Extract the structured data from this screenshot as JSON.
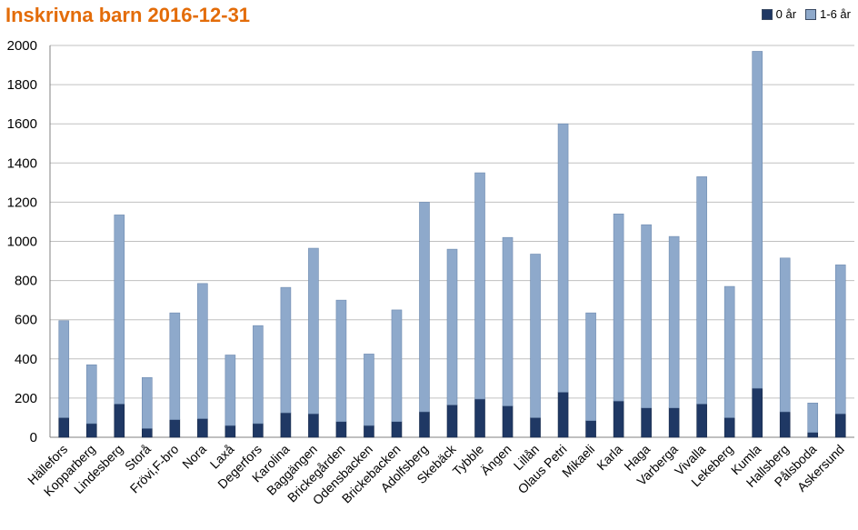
{
  "chart_data": {
    "type": "bar",
    "stacked": true,
    "title": "Inskrivna barn 2016-12-31",
    "xlabel": "",
    "ylabel": "",
    "ylim": [
      0,
      2000
    ],
    "yticks": [
      0,
      200,
      400,
      600,
      800,
      1000,
      1200,
      1400,
      1600,
      1800,
      2000
    ],
    "grid": true,
    "legend_position": "top-right",
    "categories": [
      "Hällefors",
      "Kopparberg",
      "Lindesberg",
      "Storå",
      "Frövi,F-bro",
      "Nora",
      "Laxå",
      "Degerfors",
      "Karolina",
      "Baggängen",
      "Brickegården",
      "Odensbacken",
      "Brickebacken",
      "Adolfsberg",
      "Skebäck",
      "Tybble",
      "Ängen",
      "Lillån",
      "Olaus Petri",
      "Mikaeli",
      "Karla",
      "Haga",
      "Varberga",
      "Vivalla",
      "Lekeberg",
      "Kumla",
      "Hallsberg",
      "Pålsboda",
      "Askersund"
    ],
    "series": [
      {
        "name": "0 år",
        "color": "#1f3864",
        "values": [
          100,
          70,
          170,
          45,
          90,
          95,
          60,
          70,
          125,
          120,
          80,
          60,
          80,
          130,
          165,
          195,
          160,
          100,
          230,
          85,
          185,
          150,
          150,
          170,
          100,
          250,
          130,
          25,
          120
        ]
      },
      {
        "name": "1-6 år",
        "color": "#8ea9cb",
        "values": [
          495,
          300,
          965,
          260,
          545,
          690,
          360,
          500,
          640,
          845,
          620,
          365,
          570,
          1070,
          795,
          1155,
          860,
          835,
          1370,
          550,
          955,
          935,
          875,
          1160,
          670,
          1720,
          785,
          150,
          760
        ]
      }
    ]
  }
}
